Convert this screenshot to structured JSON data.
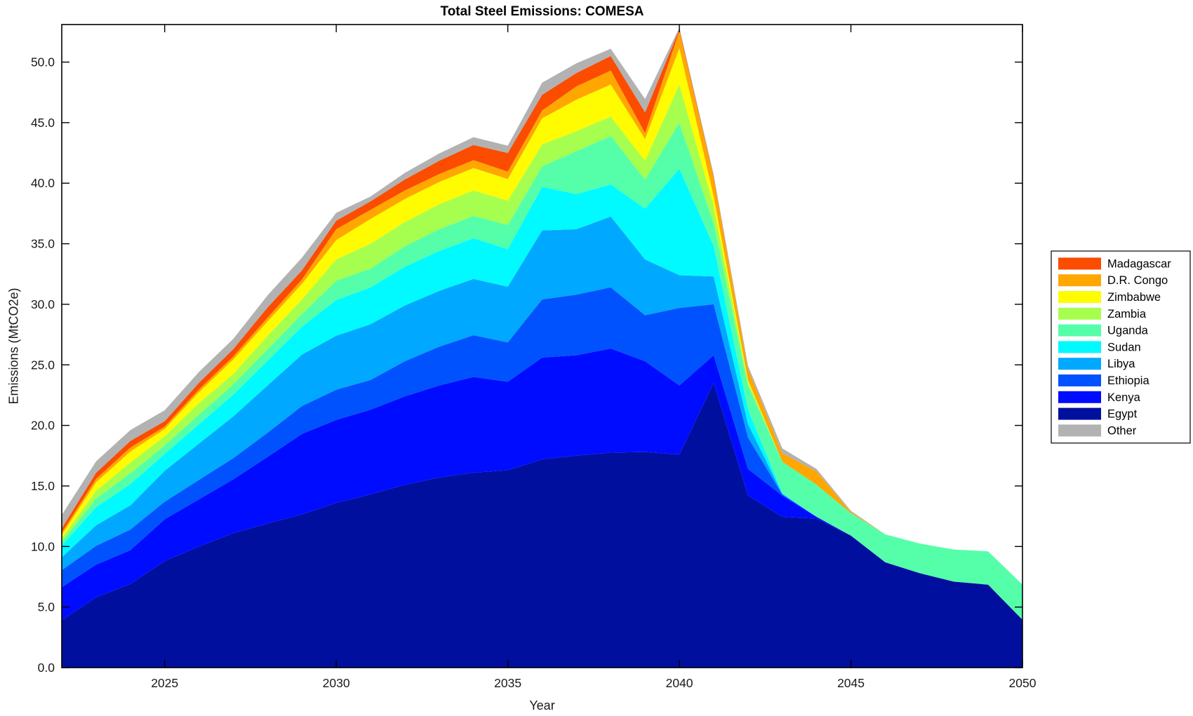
{
  "figure": {
    "title": "Total Steel Emissions: COMESA",
    "xlabel": "Year",
    "ylabel": "Emissions (MtCO2e)"
  },
  "axes": {
    "xlim": [
      2022,
      2050
    ],
    "ylim": [
      0,
      53.1
    ],
    "x_ticks": [
      2025,
      2030,
      2035,
      2040,
      2045,
      2050
    ],
    "x_tick_labels": [
      "2025",
      "2030",
      "2035",
      "2040",
      "2045",
      "2050"
    ],
    "y_ticks": [
      0,
      5,
      10,
      15,
      20,
      25,
      30,
      35,
      40,
      45,
      50
    ],
    "y_tick_labels": [
      "0.0",
      "5.0",
      "10.0",
      "15.0",
      "20.0",
      "25.0",
      "30.0",
      "35.0",
      "40.0",
      "45.0",
      "50.0"
    ],
    "grid": "off",
    "box": "on",
    "tick_direction": "in"
  },
  "legend": {
    "position": "right-outside",
    "labels": [
      "Madagascar",
      "D.R. Congo",
      "Zimbabwe",
      "Zambia",
      "Uganda",
      "Sudan",
      "Libya",
      "Ethiopia",
      "Kenya",
      "Egypt",
      "Other"
    ]
  },
  "chart_data": {
    "type": "area",
    "stacked": true,
    "title": "Total Steel Emissions: COMESA",
    "xlabel": "Year",
    "ylabel": "Emissions (MtCO2e)",
    "x": [
      2022,
      2023,
      2024,
      2025,
      2026,
      2027,
      2028,
      2029,
      2030,
      2031,
      2032,
      2033,
      2034,
      2035,
      2036,
      2037,
      2038,
      2039,
      2040,
      2041,
      2042,
      2043,
      2044,
      2045,
      2046,
      2047,
      2048,
      2049,
      2050
    ],
    "series": [
      {
        "name": "Egypt",
        "color": "#000f9e",
        "values": [
          3.9,
          5.8,
          6.9,
          8.8,
          10.0,
          11.1,
          11.9,
          12.65,
          13.6,
          14.3,
          15.1,
          15.7,
          16.1,
          16.3,
          17.2,
          17.5,
          17.75,
          17.8,
          17.6,
          23.5,
          14.2,
          12.45,
          12.3,
          10.9,
          8.7,
          7.8,
          7.1,
          6.85,
          3.95
        ]
      },
      {
        "name": "Kenya",
        "color": "#000cff",
        "values": [
          2.75,
          2.7,
          2.8,
          3.45,
          3.9,
          4.45,
          5.5,
          6.65,
          6.85,
          7.0,
          7.3,
          7.6,
          7.9,
          7.3,
          8.4,
          8.3,
          8.6,
          7.5,
          5.7,
          2.3,
          2.2,
          1.75,
          0.15,
          0,
          0,
          0,
          0,
          0,
          0
        ]
      },
      {
        "name": "Ethiopia",
        "color": "#0052ff",
        "values": [
          1.4,
          1.55,
          1.7,
          1.45,
          1.6,
          1.75,
          2.0,
          2.3,
          2.5,
          2.45,
          2.9,
          3.2,
          3.45,
          3.25,
          4.8,
          5.0,
          5.05,
          3.8,
          6.4,
          4.2,
          2.6,
          0.1,
          0,
          0,
          0,
          0,
          0,
          0,
          0
        ]
      },
      {
        "name": "Libya",
        "color": "#00a8ff",
        "values": [
          1.05,
          1.7,
          2.0,
          2.55,
          3.0,
          3.45,
          3.9,
          4.25,
          4.45,
          4.6,
          4.6,
          4.6,
          4.65,
          4.6,
          5.7,
          5.4,
          5.85,
          4.6,
          2.7,
          2.3,
          1.1,
          0.05,
          0,
          0,
          0,
          0,
          0,
          0,
          0
        ]
      },
      {
        "name": "Sudan",
        "color": "#00faff",
        "values": [
          0.95,
          1.5,
          1.75,
          1.4,
          1.6,
          1.8,
          2.05,
          2.3,
          2.95,
          3.05,
          3.2,
          3.3,
          3.35,
          3.1,
          3.6,
          2.9,
          2.65,
          4.2,
          8.8,
          2.5,
          1.2,
          0.05,
          0,
          0,
          0,
          0,
          0,
          0,
          0
        ]
      },
      {
        "name": "Uganda",
        "color": "#55ffa9",
        "values": [
          0.35,
          0.7,
          0.9,
          0.7,
          0.8,
          0.85,
          0.95,
          1.05,
          1.6,
          1.55,
          1.7,
          1.8,
          1.85,
          2.0,
          1.7,
          3.55,
          4.0,
          2.4,
          3.8,
          1.9,
          2.0,
          2.6,
          2.65,
          1.85,
          2.3,
          2.45,
          2.65,
          2.75,
          2.9
        ]
      },
      {
        "name": "Zambia",
        "color": "#a6ff4e",
        "values": [
          0.27,
          0.65,
          0.9,
          0.75,
          0.95,
          0.85,
          1.1,
          1.2,
          1.75,
          2.05,
          2.0,
          2.05,
          2.1,
          2.0,
          1.8,
          1.65,
          1.6,
          1.55,
          3.15,
          1.4,
          0.3,
          0,
          0,
          0,
          0,
          0,
          0,
          0,
          0
        ]
      },
      {
        "name": "Zimbabwe",
        "color": "#fffb00",
        "values": [
          0.29,
          0.7,
          0.9,
          0.6,
          0.9,
          1.2,
          1.2,
          1.3,
          1.6,
          2.05,
          1.9,
          1.85,
          1.85,
          1.8,
          2.15,
          2.6,
          2.65,
          1.8,
          3.0,
          0.8,
          0.15,
          0,
          0,
          0,
          0,
          0,
          0,
          0,
          0
        ]
      },
      {
        "name": "D.R. Congo",
        "color": "#ffa600",
        "values": [
          0.19,
          0.28,
          0.32,
          0.2,
          0.22,
          0.25,
          0.3,
          0.35,
          0.9,
          0.75,
          0.7,
          0.65,
          0.65,
          0.6,
          0.65,
          1.1,
          1.15,
          0.5,
          1.4,
          1.5,
          0.9,
          0.7,
          1.1,
          0.1,
          0,
          0,
          0,
          0,
          0
        ]
      },
      {
        "name": "Madagascar",
        "color": "#fb4c00",
        "values": [
          0.35,
          0.5,
          0.55,
          0.45,
          0.55,
          0.6,
          0.85,
          0.75,
          0.7,
          0.7,
          0.9,
          1.1,
          1.25,
          1.55,
          1.3,
          1.1,
          1.2,
          1.7,
          0.15,
          0.1,
          0.03,
          0,
          0,
          0,
          0,
          0,
          0,
          0,
          0
        ]
      },
      {
        "name": "Other",
        "color": "#b2b2b2",
        "values": [
          1.1,
          0.95,
          0.9,
          0.9,
          0.9,
          0.85,
          1.0,
          1.05,
          0.65,
          0.4,
          0.55,
          0.6,
          0.65,
          0.6,
          1.0,
          0.8,
          0.6,
          1.1,
          0.15,
          0.2,
          0.25,
          0.4,
          0.2,
          0.1,
          0,
          0,
          0,
          0,
          0
        ]
      }
    ],
    "legend_order_top_to_bottom": [
      "Madagascar",
      "D.R. Congo",
      "Zimbabwe",
      "Zambia",
      "Uganda",
      "Sudan",
      "Libya",
      "Ethiopia",
      "Kenya",
      "Egypt",
      "Other"
    ]
  }
}
